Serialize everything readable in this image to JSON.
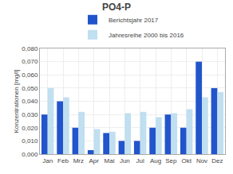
{
  "chart_data": {
    "type": "bar",
    "title": "PO4-P",
    "ylabel": "Konzentrationen [mg/l]",
    "categories": [
      "Jan",
      "Feb",
      "Mrz",
      "Apr",
      "Mai",
      "Jun",
      "Jul",
      "Aug",
      "Sep",
      "Okt",
      "Nov",
      "Dez"
    ],
    "series": [
      {
        "name": "Berichtsjahr 2017",
        "color": "#2255cc",
        "values": [
          0.03,
          0.04,
          0.02,
          0.003,
          0.016,
          0.01,
          0.01,
          0.02,
          0.03,
          0.02,
          0.07,
          0.05
        ]
      },
      {
        "name": "Jahresreihe 2000 bis 2016",
        "color": "#c0dff0",
        "values": [
          0.05,
          0.043,
          0.032,
          0.019,
          0.017,
          0.031,
          0.032,
          0.028,
          0.031,
          0.034,
          0.043,
          0.047
        ]
      }
    ],
    "ylim": [
      0.0,
      0.08
    ],
    "yticks": [
      {
        "value": 0.0,
        "label": "0,000"
      },
      {
        "value": 0.01,
        "label": "0,010"
      },
      {
        "value": 0.02,
        "label": "0,020"
      },
      {
        "value": 0.03,
        "label": "0,030"
      },
      {
        "value": 0.04,
        "label": "0,040"
      },
      {
        "value": 0.05,
        "label": "0,050"
      },
      {
        "value": 0.06,
        "label": "0,060"
      },
      {
        "value": 0.07,
        "label": "0,070"
      },
      {
        "value": 0.08,
        "label": "0,080"
      }
    ],
    "grid": true,
    "legend": "top"
  }
}
